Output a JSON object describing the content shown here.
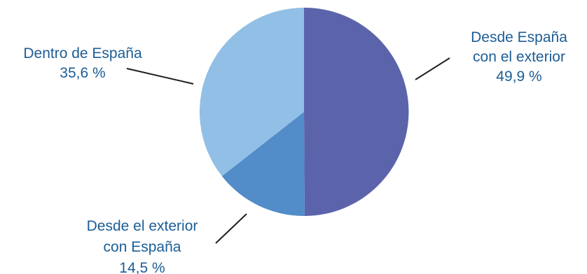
{
  "chart_data": {
    "type": "pie",
    "title": "",
    "slices": [
      {
        "label_lines": [
          "Desde España",
          "con el exterior"
        ],
        "value_text": "49,9 %",
        "value": 49.9,
        "color": "#5b64ab"
      },
      {
        "label_lines": [
          "Desde el exterior",
          "con España"
        ],
        "value_text": "14,5 %",
        "value": 14.5,
        "color": "#528cc9"
      },
      {
        "label_lines": [
          "Dentro de España"
        ],
        "value_text": "35,6 %",
        "value": 35.6,
        "color": "#91bfe6"
      }
    ],
    "start_angle": "12 o'clock",
    "direction": "clockwise",
    "label_color": "#1c5d96",
    "leader_line_color": "#1f1f1f"
  }
}
